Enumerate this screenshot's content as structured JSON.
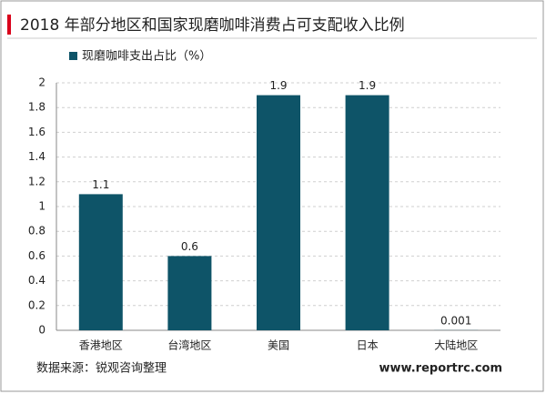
{
  "chart_data": {
    "type": "bar",
    "title": "2018 年部分地区和国家现磨咖啡消费占可支配收入比例",
    "categories": [
      "香港地区",
      "台湾地区",
      "美国",
      "日本",
      "大陆地区"
    ],
    "series": [
      {
        "name": "现磨咖啡支出占比（%）",
        "color": "#0e5468",
        "values": [
          1.1,
          0.6,
          1.9,
          1.9,
          0.001
        ]
      }
    ],
    "ylim": [
      0,
      2
    ],
    "yticks": [
      0,
      0.2,
      0.4,
      0.6,
      0.8,
      1,
      1.2,
      1.4,
      1.6,
      1.8,
      2
    ],
    "grid": true,
    "legend": "top-left",
    "source": "数据来源：锐观咨询整理",
    "watermark": "www.reportrc.com"
  }
}
